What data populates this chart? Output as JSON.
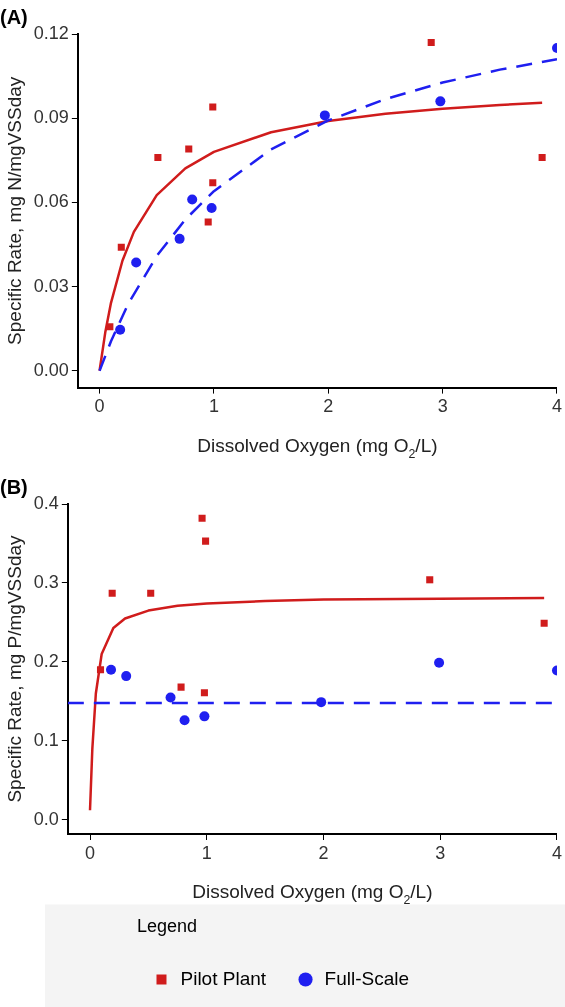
{
  "chart_data": [
    {
      "type": "scatter",
      "title": "(A)",
      "xlabel": "Dissolved Oxygen (mg O$_{2}$/L)",
      "ylabel": "Specific Rate, mg N/mgVSSday",
      "xlim": [
        -0.19,
        4
      ],
      "xticks": [
        0,
        1,
        2,
        3,
        4
      ],
      "ylim": [
        -0.006,
        0.12
      ],
      "yticks": [
        {
          "value": 0,
          "label": "0.00"
        },
        {
          "value": 0.03,
          "label": "0.03"
        },
        {
          "value": 0.06,
          "label": "0.06"
        },
        {
          "value": 0.09,
          "label": "0.09"
        },
        {
          "value": 0.12,
          "label": "0.12"
        }
      ],
      "grid": false,
      "legend": false,
      "series": [
        {
          "type": "line",
          "color": "#d01c1c",
          "line_style": "solid",
          "marker": "none",
          "x": [
            0,
            0.05,
            0.1,
            0.2,
            0.3,
            0.5,
            0.75,
            1,
            1.5,
            2,
            2.5,
            3,
            3.5,
            3.87
          ],
          "values": [
            0,
            0.0137,
            0.0242,
            0.0392,
            0.0495,
            0.0626,
            0.0721,
            0.078,
            0.085,
            0.089,
            0.0916,
            0.0934,
            0.0947,
            0.0955
          ]
        },
        {
          "type": "line",
          "color": "#1f1ff0",
          "line_style": "dashed",
          "marker": "none",
          "x": [
            0,
            0.1,
            0.25,
            0.5,
            0.75,
            1,
            1.5,
            2,
            2.5,
            3,
            3.5,
            4
          ],
          "values": [
            0,
            0.0105,
            0.0238,
            0.0409,
            0.0539,
            0.064,
            0.0789,
            0.0892,
            0.0968,
            0.1027,
            0.1073,
            0.111
          ]
        },
        {
          "type": "scatter",
          "color": "#d01c1c",
          "marker": "square",
          "x": [
            0.09,
            0.19,
            0.51,
            0.78,
            0.99,
            0.99,
            0.95,
            2.9,
            3.87
          ],
          "values": [
            0.0157,
            0.044,
            0.076,
            0.079,
            0.094,
            0.067,
            0.053,
            0.117,
            0.076
          ]
        },
        {
          "type": "scatter",
          "color": "#1f1ff0",
          "marker": "circle",
          "x": [
            0.18,
            0.32,
            0.7,
            0.81,
            0.98,
            1.97,
            2.98,
            4
          ],
          "values": [
            0.0146,
            0.0386,
            0.047,
            0.061,
            0.058,
            0.091,
            0.096,
            0.115
          ]
        }
      ]
    },
    {
      "type": "scatter",
      "title": "(B)",
      "xlabel": "Dissolved Oxygen (mg O$_{2}$/L)",
      "ylabel": "Specific Rate, mg P/mgVSSday",
      "xlim": [
        -0.19,
        4
      ],
      "xticks": [
        0,
        1,
        2,
        3,
        4
      ],
      "ylim": [
        -0.018,
        0.4
      ],
      "yticks": [
        {
          "value": 0,
          "label": "0.0"
        },
        {
          "value": 0.1,
          "label": "0.1"
        },
        {
          "value": 0.2,
          "label": "0.2"
        },
        {
          "value": 0.3,
          "label": "0.3"
        },
        {
          "value": 0.4,
          "label": "0.4"
        }
      ],
      "grid": false,
      "legend": "bottom",
      "legend_title": "Legend",
      "series": [
        {
          "type": "line",
          "color": "#d01c1c",
          "line_style": "solid",
          "marker": "none",
          "x": [
            0,
            0.02,
            0.05,
            0.1,
            0.2,
            0.3,
            0.5,
            0.75,
            1,
            1.5,
            2,
            3,
            3.89
          ],
          "values": [
            0.012,
            0.09,
            0.16,
            0.21,
            0.243,
            0.255,
            0.265,
            0.271,
            0.274,
            0.277,
            0.279,
            0.28,
            0.281
          ]
        },
        {
          "type": "line",
          "color": "#1f1ff0",
          "line_style": "dashed",
          "marker": "none",
          "x": [
            -0.19,
            4
          ],
          "values": [
            0.148,
            0.148
          ]
        },
        {
          "type": "scatter",
          "name": "Pilot Plant",
          "color": "#d01c1c",
          "marker": "square",
          "x": [
            0.09,
            0.19,
            0.52,
            0.96,
            0.99,
            0.78,
            0.98,
            2.91,
            3.89
          ],
          "values": [
            0.19,
            0.287,
            0.287,
            0.382,
            0.353,
            0.168,
            0.161,
            0.304,
            0.249
          ]
        },
        {
          "type": "scatter",
          "name": "Full-Scale",
          "color": "#1f1ff0",
          "marker": "circle",
          "x": [
            0.18,
            0.31,
            0.69,
            0.81,
            0.98,
            1.98,
            2.99,
            4
          ],
          "values": [
            0.19,
            0.182,
            0.155,
            0.126,
            0.131,
            0.149,
            0.199,
            0.189
          ]
        }
      ]
    }
  ]
}
